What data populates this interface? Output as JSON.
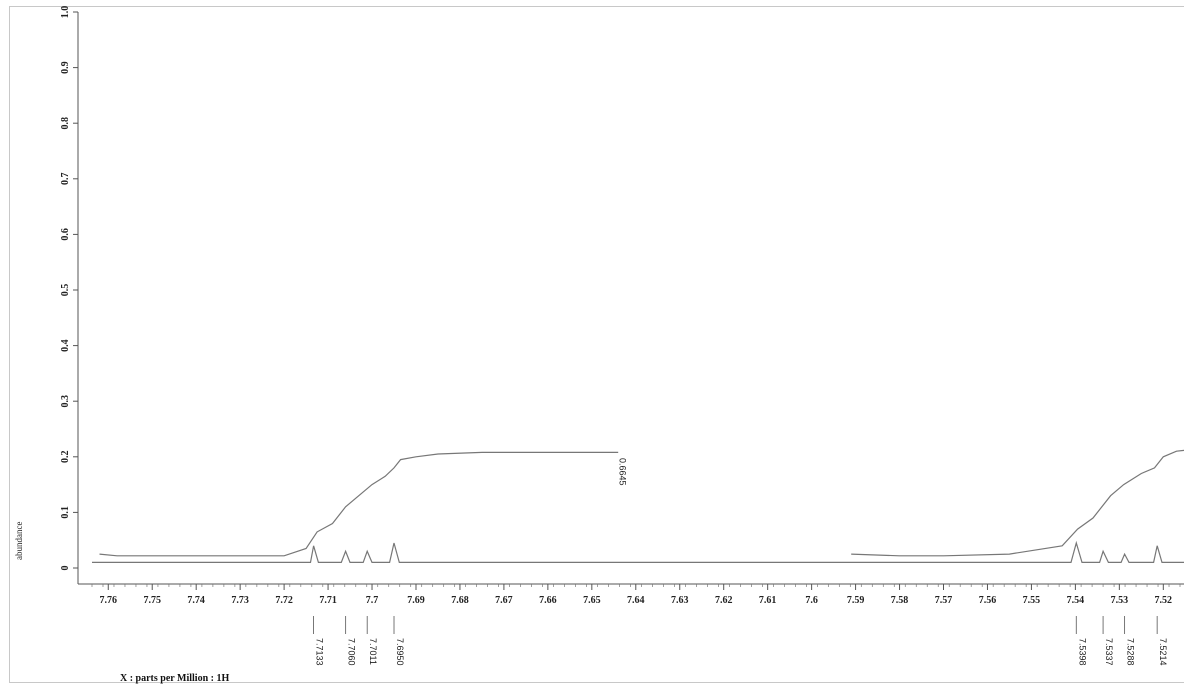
{
  "chart_data": {
    "type": "line",
    "xlabel": "X : parts per Million : 1H",
    "ylabel": "abundance",
    "xlim": [
      7.7637,
      7.5137
    ],
    "ylim": [
      0,
      1.0
    ],
    "x_ticks": [
      "7.76",
      "7.75",
      "7.74",
      "7.73",
      "7.72",
      "7.71",
      "7.7",
      "7.69",
      "7.68",
      "7.67",
      "7.66",
      "7.65",
      "7.64",
      "7.63",
      "7.62",
      "7.61",
      "7.6",
      "7.59",
      "7.58",
      "7.57",
      "7.56",
      "7.55",
      "7.54",
      "7.53",
      "7.52"
    ],
    "y_ticks": [
      "0",
      "0.1",
      "0.2",
      "0.3",
      "0.4",
      "0.5",
      "0.6",
      "0.7",
      "0.8",
      "0.9",
      "1.0"
    ],
    "peaks": [
      {
        "x": 7.7133,
        "label": "7.7133"
      },
      {
        "x": 7.706,
        "label": "7.7060"
      },
      {
        "x": 7.7011,
        "label": "7.7011"
      },
      {
        "x": 7.695,
        "label": "7.6950"
      },
      {
        "x": 7.5398,
        "label": "7.5398"
      },
      {
        "x": 7.5337,
        "label": "7.5337"
      },
      {
        "x": 7.5288,
        "label": "7.5288"
      },
      {
        "x": 7.5214,
        "label": "7.5214"
      }
    ],
    "integrals": [
      {
        "label": "0.6645",
        "x_start": 7.716,
        "x_end": 7.692,
        "label_x": 7.643
      }
    ],
    "series": [
      {
        "values": [
          [
            7.7637,
            0.01
          ],
          [
            7.714,
            0.01
          ],
          [
            7.7133,
            0.04
          ],
          [
            7.7122,
            0.01
          ],
          [
            7.707,
            0.01
          ],
          [
            7.706,
            0.03
          ],
          [
            7.705,
            0.01
          ],
          [
            7.702,
            0.01
          ],
          [
            7.7011,
            0.03
          ],
          [
            7.7,
            0.01
          ],
          [
            7.696,
            0.01
          ],
          [
            7.695,
            0.045
          ],
          [
            7.6938,
            0.01
          ],
          [
            7.541,
            0.01
          ],
          [
            7.5398,
            0.045
          ],
          [
            7.5385,
            0.01
          ],
          [
            7.5345,
            0.01
          ],
          [
            7.5337,
            0.03
          ],
          [
            7.5325,
            0.01
          ],
          [
            7.5296,
            0.01
          ],
          [
            7.5288,
            0.025
          ],
          [
            7.5278,
            0.01
          ],
          [
            7.5222,
            0.01
          ],
          [
            7.5214,
            0.04
          ],
          [
            7.5203,
            0.01
          ],
          [
            7.5137,
            0.01
          ]
        ]
      },
      {
        "values": [
          [
            7.762,
            0.025
          ],
          [
            7.758,
            0.022
          ],
          [
            7.75,
            0.022
          ],
          [
            7.72,
            0.022
          ],
          [
            7.715,
            0.035
          ],
          [
            7.7125,
            0.065
          ],
          [
            7.709,
            0.08
          ],
          [
            7.706,
            0.11
          ],
          [
            7.703,
            0.13
          ],
          [
            7.7,
            0.15
          ],
          [
            7.697,
            0.165
          ],
          [
            7.695,
            0.18
          ],
          [
            7.6935,
            0.195
          ],
          [
            7.69,
            0.2
          ],
          [
            7.685,
            0.205
          ],
          [
            7.675,
            0.208
          ],
          [
            7.644,
            0.208
          ]
        ]
      },
      {
        "values": [
          [
            7.591,
            0.025
          ],
          [
            7.58,
            0.022
          ],
          [
            7.57,
            0.022
          ],
          [
            7.555,
            0.025
          ],
          [
            7.543,
            0.04
          ],
          [
            7.5395,
            0.07
          ],
          [
            7.536,
            0.09
          ],
          [
            7.532,
            0.13
          ],
          [
            7.529,
            0.15
          ],
          [
            7.525,
            0.17
          ],
          [
            7.522,
            0.18
          ],
          [
            7.52,
            0.2
          ],
          [
            7.517,
            0.21
          ],
          [
            7.5137,
            0.213
          ]
        ]
      }
    ]
  }
}
